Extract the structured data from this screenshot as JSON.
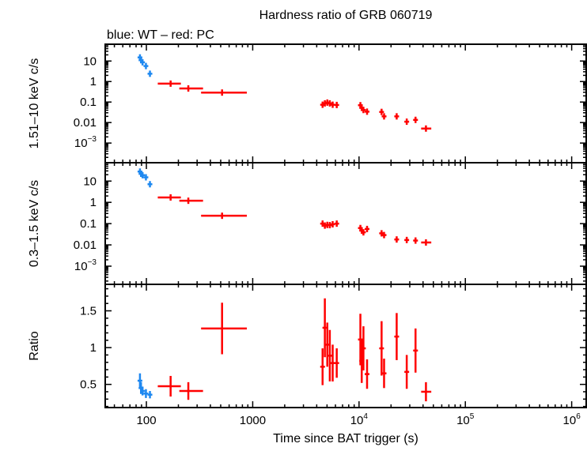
{
  "chart_data": {
    "type": "scatter",
    "title": "Hardness ratio of GRB 060719",
    "subtitle": "blue: WT – red: PC",
    "xlabel": "Time since BAT trigger (s)",
    "xscale": "log",
    "xlim": [
      41,
      1370000
    ],
    "x_ticks": [
      {
        "base": "100",
        "exp": ""
      },
      {
        "base": "1000",
        "exp": ""
      },
      {
        "base": "10",
        "exp": "4"
      },
      {
        "base": "10",
        "exp": "5"
      },
      {
        "base": "10",
        "exp": "6"
      }
    ],
    "colors": {
      "WT": "#1e88f0",
      "PC": "#ff0000"
    },
    "grid": false,
    "panels": [
      {
        "ylabel": "1.51–10 keV c/s",
        "yscale": "log",
        "ylim": [
          0.00011,
          66
        ],
        "y_ticks": [
          {
            "base": "10",
            "exp": ""
          },
          {
            "base": "1",
            "exp": ""
          },
          {
            "base": "0.1",
            "exp": ""
          },
          {
            "base": "0.01",
            "exp": ""
          },
          {
            "base": "10",
            "exp": "−3"
          }
        ],
        "WT": {
          "t": [
            87,
            89,
            92,
            99,
            108
          ],
          "y": [
            15,
            11,
            8.7,
            5.7,
            2.4
          ]
        },
        "PC": {
          "y": [
            0.79,
            0.46,
            0.29,
            0.074,
            0.086,
            0.094,
            0.086,
            0.074,
            0.072,
            0.07,
            0.052,
            0.041,
            0.034,
            0.033,
            0.02,
            0.02,
            0.011,
            0.0135,
            0.0051
          ]
        }
      },
      {
        "ylabel": "0.3–1.5 keV c/s",
        "yscale": "log",
        "ylim": [
          0.00014,
          73
        ],
        "y_ticks": [
          {
            "base": "10",
            "exp": ""
          },
          {
            "base": "1",
            "exp": ""
          },
          {
            "base": "0.1",
            "exp": ""
          },
          {
            "base": "0.01",
            "exp": ""
          },
          {
            "base": "10",
            "exp": "−3"
          }
        ],
        "WT": {
          "t": [
            87,
            89,
            92,
            99,
            108
          ],
          "y": [
            28,
            22,
            19,
            15,
            7.1
          ]
        },
        "PC": {
          "y": [
            1.7,
            1.19,
            0.234,
            0.1,
            0.081,
            0.087,
            0.085,
            0.093,
            0.1,
            0.062,
            0.047,
            0.039,
            0.056,
            0.035,
            0.029,
            0.018,
            0.017,
            0.016,
            0.013
          ]
        }
      },
      {
        "ylabel": "Ratio",
        "yscale": "linear",
        "ylim": [
          0.185,
          1.86
        ],
        "y_ticks": [
          {
            "base": "0.5",
            "exp": ""
          },
          {
            "base": "1",
            "exp": ""
          },
          {
            "base": "1.5",
            "exp": ""
          }
        ],
        "WT": {
          "t": [
            87,
            89,
            92,
            99,
            108
          ],
          "y": [
            0.55,
            0.45,
            0.41,
            0.375,
            0.36
          ],
          "yerr": [
            0.1,
            0.08,
            0.06,
            0.06,
            0.05
          ]
        },
        "PC": {
          "y": [
            0.475,
            0.41,
            1.26,
            0.74,
            1.27,
            1.04,
            0.89,
            0.79,
            0.79,
            1.11,
            0.82,
            0.99,
            0.64,
            0.99,
            0.65,
            1.15,
            0.67,
            0.96,
            0.4
          ],
          "yerr": [
            0.14,
            0.12,
            0.35,
            0.25,
            0.4,
            0.3,
            0.35,
            0.25,
            0.2,
            0.35,
            0.3,
            0.3,
            0.2,
            0.37,
            0.2,
            0.32,
            0.23,
            0.3,
            0.13
          ]
        }
      }
    ],
    "PC_time": {
      "t": [
        169,
        248,
        515,
        4540,
        4770,
        5030,
        5310,
        5650,
        6170,
        10300,
        10600,
        11000,
        11900,
        16300,
        17200,
        22600,
        28100,
        34000,
        42600
      ],
      "t_lo": [
        128,
        204,
        327,
        4360,
        4580,
        4830,
        5100,
        5420,
        5920,
        9900,
        10200,
        10560,
        11420,
        15650,
        16500,
        21700,
        27000,
        32600,
        38400
      ],
      "t_hi": [
        211,
        341,
        881,
        4720,
        4960,
        5230,
        5520,
        5880,
        6420,
        10700,
        11000,
        11440,
        12380,
        16950,
        17900,
        23500,
        29200,
        35400,
        47800
      ]
    }
  }
}
